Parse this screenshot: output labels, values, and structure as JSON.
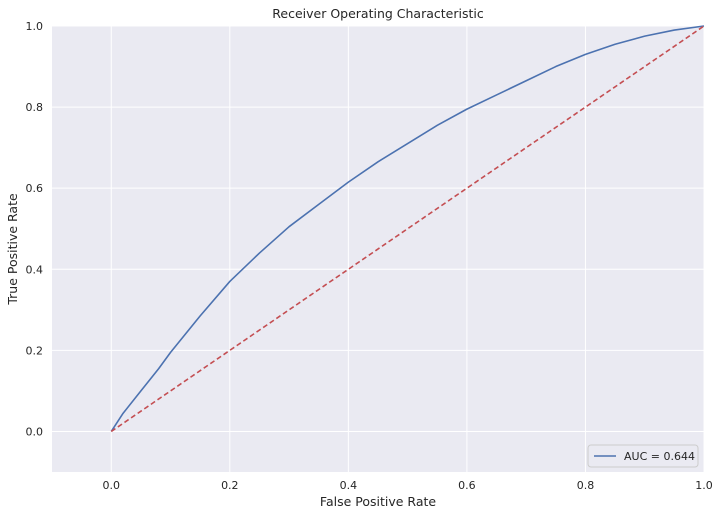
{
  "chart_data": {
    "type": "line",
    "title": "Receiver Operating Characteristic",
    "xlabel": "False Positive Rate",
    "ylabel": "True Positive Rate",
    "xlim": [
      -0.1,
      1.0
    ],
    "ylim": [
      -0.1,
      1.0
    ],
    "xticks": [
      0.0,
      0.2,
      0.4,
      0.6,
      0.8,
      1.0
    ],
    "xtick_labels": [
      "0.0",
      "0.2",
      "0.4",
      "0.6",
      "0.8",
      "1.0"
    ],
    "yticks": [
      0.0,
      0.2,
      0.4,
      0.6,
      0.8,
      1.0
    ],
    "ytick_labels": [
      "0.0",
      "0.2",
      "0.4",
      "0.6",
      "0.8",
      "1.0"
    ],
    "grid": true,
    "background_color": "#eaeaf2",
    "grid_color": "#ffffff",
    "legend_position": "lower-right",
    "series": [
      {
        "name": "AUC = 0.644",
        "color": "#4c72b0",
        "style": "solid",
        "x": [
          0.0,
          0.02,
          0.05,
          0.08,
          0.1,
          0.15,
          0.2,
          0.25,
          0.3,
          0.35,
          0.4,
          0.45,
          0.5,
          0.55,
          0.6,
          0.65,
          0.7,
          0.75,
          0.8,
          0.85,
          0.9,
          0.95,
          1.0
        ],
        "y": [
          0.0,
          0.045,
          0.1,
          0.155,
          0.195,
          0.285,
          0.37,
          0.44,
          0.505,
          0.56,
          0.615,
          0.665,
          0.71,
          0.755,
          0.795,
          0.83,
          0.865,
          0.9,
          0.93,
          0.955,
          0.975,
          0.99,
          1.0
        ]
      },
      {
        "name": "",
        "color": "#c44e52",
        "style": "dashed",
        "x": [
          0.0,
          1.0
        ],
        "y": [
          0.0,
          1.0
        ]
      }
    ]
  }
}
